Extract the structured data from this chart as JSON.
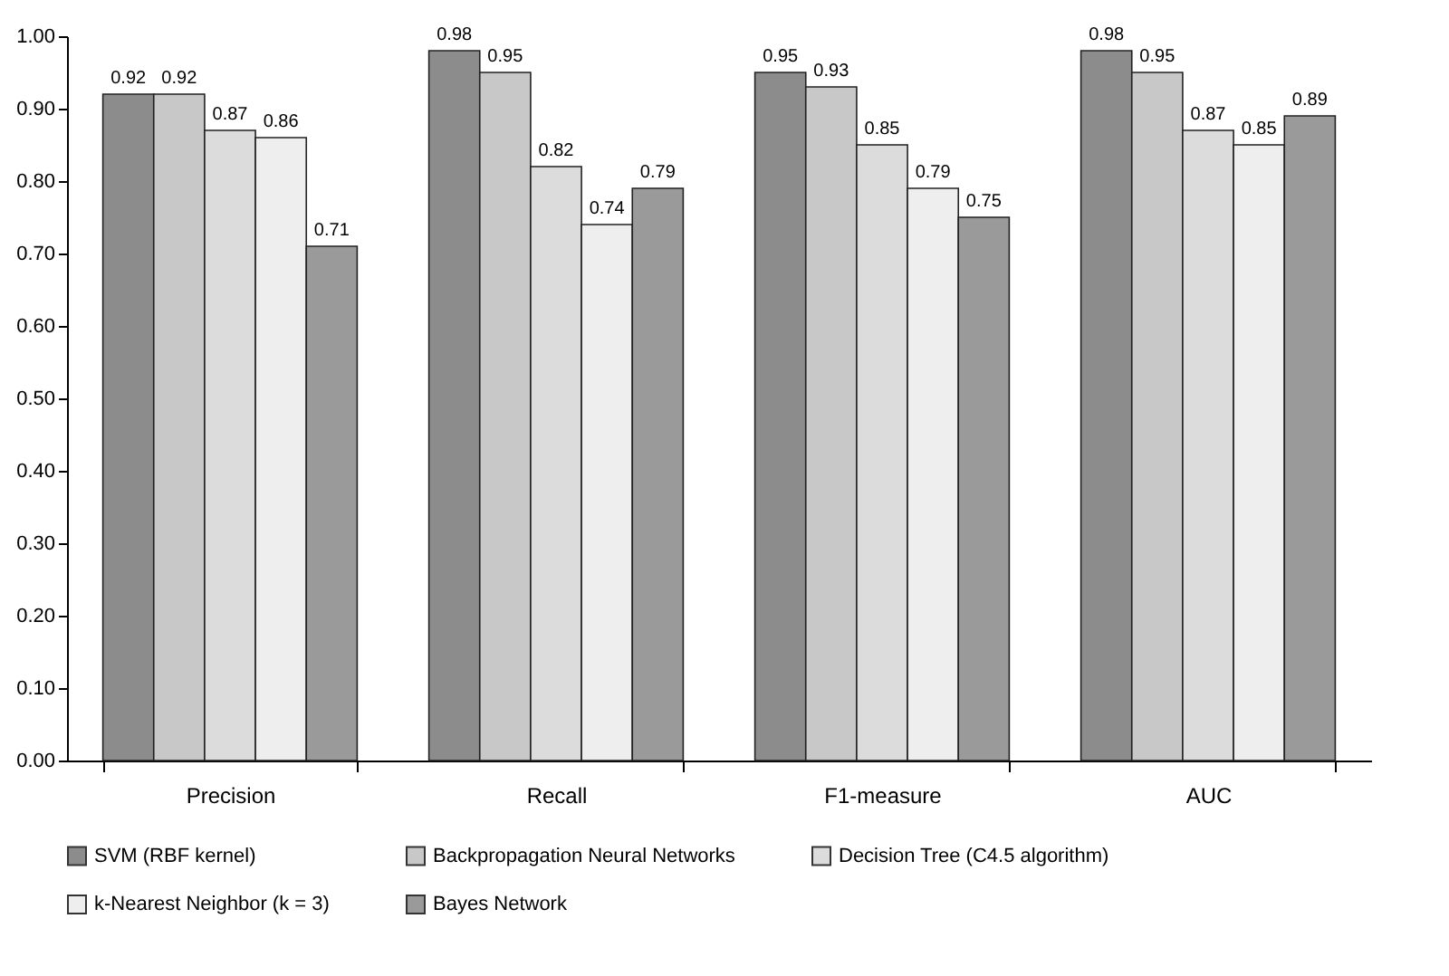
{
  "chart_data": {
    "type": "bar",
    "categories": [
      "Precision",
      "Recall",
      "F1-measure",
      "AUC"
    ],
    "series": [
      {
        "name": "SVM (RBF kernel)",
        "color": "#8c8c8c",
        "values": [
          0.92,
          0.98,
          0.95,
          0.98
        ]
      },
      {
        "name": "Backpropagation Neural Networks",
        "color": "#c8c8c8",
        "values": [
          0.92,
          0.95,
          0.93,
          0.95
        ]
      },
      {
        "name": "Decision Tree (C4.5 algorithm)",
        "color": "#dcdcdc",
        "values": [
          0.87,
          0.82,
          0.85,
          0.87
        ]
      },
      {
        "name": "k-Nearest Neighbor (k = 3)",
        "color": "#eeeeee",
        "values": [
          0.86,
          0.74,
          0.79,
          0.85
        ]
      },
      {
        "name": "Bayes Network",
        "color": "#9a9a9a",
        "values": [
          0.71,
          0.79,
          0.75,
          0.89
        ]
      }
    ],
    "ylim": [
      0,
      1
    ],
    "yticks": [
      {
        "value": 0,
        "label": "0.00"
      },
      {
        "value": 0.1,
        "label": "0.10"
      },
      {
        "value": 0.2,
        "label": "0.20"
      },
      {
        "value": 0.3,
        "label": "0.30"
      },
      {
        "value": 0.4,
        "label": "0.40"
      },
      {
        "value": 0.5,
        "label": "0.50"
      },
      {
        "value": 0.6,
        "label": "0.60"
      },
      {
        "value": 0.7,
        "label": "0.70"
      },
      {
        "value": 0.8,
        "label": "0.80"
      },
      {
        "value": 0.9,
        "label": "0.90"
      },
      {
        "value": 1,
        "label": "1.00"
      }
    ],
    "data_labels": true,
    "grid": false,
    "legend": "bottom"
  }
}
